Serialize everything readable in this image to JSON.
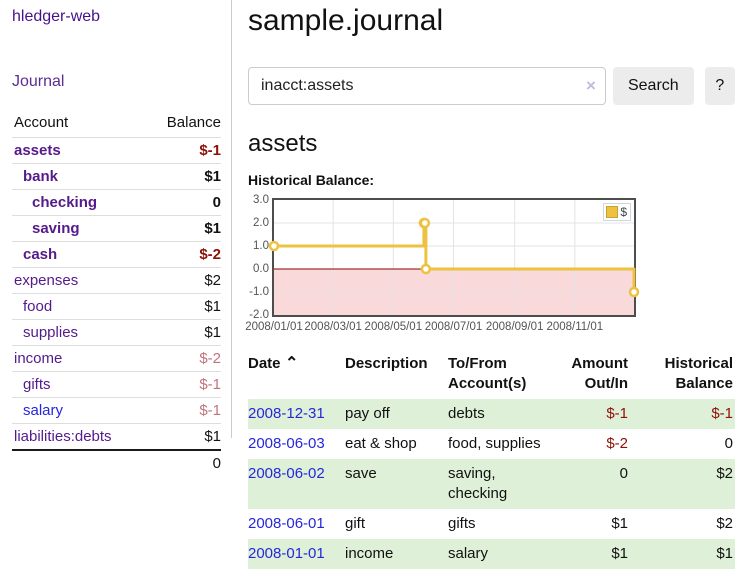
{
  "app": {
    "brand": "hledger-web",
    "nav_journal": "Journal"
  },
  "sidebar": {
    "columns": {
      "account": "Account",
      "balance": "Balance"
    },
    "accounts": [
      {
        "name": "assets",
        "indent": 1,
        "bold": true,
        "balance": "$-1",
        "tone": "neg"
      },
      {
        "name": "bank",
        "indent": 2,
        "bold": true,
        "balance": "$1",
        "tone": ""
      },
      {
        "name": "checking",
        "indent": 3,
        "bold": true,
        "balance": "0",
        "tone": ""
      },
      {
        "name": "saving",
        "indent": 3,
        "bold": true,
        "balance": "$1",
        "tone": ""
      },
      {
        "name": "cash",
        "indent": 2,
        "bold": true,
        "balance": "$-2",
        "tone": "neg"
      },
      {
        "name": "expenses",
        "indent": 1,
        "bold": false,
        "balance": "$2",
        "tone": ""
      },
      {
        "name": "food",
        "indent": 2,
        "bold": false,
        "balance": "$1",
        "tone": ""
      },
      {
        "name": "supplies",
        "indent": 2,
        "bold": false,
        "balance": "$1",
        "tone": ""
      },
      {
        "name": "income",
        "indent": 1,
        "bold": false,
        "balance": "$-2",
        "tone": "negsoft"
      },
      {
        "name": "gifts",
        "indent": 2,
        "bold": false,
        "balance": "$-1",
        "tone": "negsoft"
      },
      {
        "name": "salary",
        "indent": 2,
        "bold": false,
        "balance": "$-1",
        "tone": "negsoft",
        "blue": true
      },
      {
        "name": "liabilities:debts",
        "indent": 1,
        "bold": false,
        "balance": "$1",
        "tone": ""
      }
    ],
    "total": "0"
  },
  "header": {
    "title": "sample.journal"
  },
  "search": {
    "value": "inacct:assets",
    "clear_icon": "×",
    "button": "Search",
    "help_button": "?"
  },
  "account_page": {
    "heading": "assets",
    "chart_label": "Historical Balance:"
  },
  "chart_data": {
    "type": "line",
    "step": true,
    "title": "Historical Balance",
    "series": [
      {
        "name": "$",
        "color": "#edc240",
        "points": [
          [
            "2008-01-01",
            1
          ],
          [
            "2008-06-01",
            2
          ],
          [
            "2008-06-02",
            2
          ],
          [
            "2008-06-03",
            0
          ],
          [
            "2008-12-31",
            -1
          ]
        ]
      }
    ],
    "x_range": [
      "2008-01-01",
      "2008-12-31"
    ],
    "ylim": [
      -2,
      3
    ],
    "y_ticks": [
      "3.0",
      "2.0",
      "1.0",
      "0.0",
      "-1.0",
      "-2.0"
    ],
    "x_ticks": [
      "2008/01/01",
      "2008/03/01",
      "2008/05/01",
      "2008/07/01",
      "2008/09/01",
      "2008/11/01"
    ],
    "grid_y": [
      2,
      1,
      -1
    ],
    "negative_fill": "#f9d9da",
    "zero_line_color": "#8b0000",
    "grid_on": true,
    "legend": {
      "label": "$",
      "position": "top-right"
    }
  },
  "register": {
    "columns": [
      {
        "line1": "Date",
        "sort": "⌃",
        "align": "left"
      },
      {
        "line1": "Description",
        "align": "left"
      },
      {
        "line1": "To/From",
        "line2": "Account(s)",
        "align": "left"
      },
      {
        "line1": "Amount",
        "line2": "Out/In",
        "align": "right"
      },
      {
        "line1": "Historical",
        "line2": "Balance",
        "align": "right"
      }
    ],
    "rows": [
      {
        "date": "2008-12-31",
        "description": "pay off",
        "accounts": "debts",
        "amount": "$-1",
        "amount_tone": "neg",
        "balance": "$-1",
        "balance_tone": "neg",
        "stripe": true
      },
      {
        "date": "2008-06-03",
        "description": "eat & shop",
        "accounts": "food, supplies",
        "amount": "$-2",
        "amount_tone": "neg",
        "balance": "0",
        "balance_tone": "",
        "stripe": false
      },
      {
        "date": "2008-06-02",
        "description": "save",
        "accounts": "saving, checking",
        "amount": "0",
        "amount_tone": "",
        "balance": "$2",
        "balance_tone": "",
        "stripe": true
      },
      {
        "date": "2008-06-01",
        "description": "gift",
        "accounts": "gifts",
        "amount": "$1",
        "amount_tone": "",
        "balance": "$2",
        "balance_tone": "",
        "stripe": false
      },
      {
        "date": "2008-01-01",
        "description": "income",
        "accounts": "salary",
        "amount": "$1",
        "amount_tone": "",
        "balance": "$1",
        "balance_tone": "",
        "stripe": true
      }
    ]
  }
}
